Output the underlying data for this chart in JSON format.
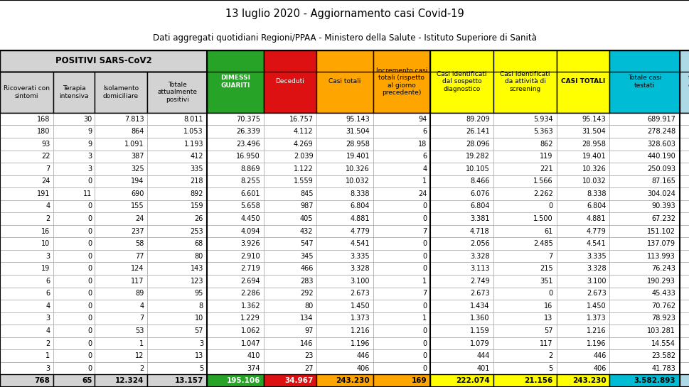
{
  "title1": "13 luglio 2020 - Aggiornamento casi Covid-19",
  "title2": "Dati aggregati quotidiani Regioni/PPAA - Ministero della Salute - Istituto Superiore di Sanità",
  "header_positivi": "POSITIVI SARS-CoV2",
  "sub_headers": [
    "Ricoverati con\nsintomi",
    "Terapia\nintensiva",
    "Isolamento\ndomiciliare",
    "Totale\nattualmente\npositivi"
  ],
  "header_dimessi": "DIMESSI\nGUARITI",
  "header_deceduti": "Deceduti",
  "header_casi_totali": "Casi totali",
  "header_incremento": "Incremento casi\ntotali (rispetto\nal giorno\nprecedente)",
  "header_sospetto": "Casi identificati\ndal sospetto\ndiagnostico",
  "header_screening": "Casi identificati\nda attività di\nscreening",
  "header_casi_totali2": "CASI TOTALI",
  "header_testati": "Totale casi\ntestati",
  "header_last": "t\ne",
  "col_header_colors": [
    "#d3d3d3",
    "#d3d3d3",
    "#d3d3d3",
    "#d3d3d3",
    "#27a327",
    "#dd1111",
    "#ffa500",
    "#ffa500",
    "#ffff00",
    "#ffff00",
    "#ffff00",
    "#00bcd4",
    "#add8e6"
  ],
  "col_header_text_colors": [
    "black",
    "black",
    "black",
    "black",
    "white",
    "white",
    "black",
    "black",
    "black",
    "black",
    "black",
    "black",
    "black"
  ],
  "total_bg_colors": [
    "#d3d3d3",
    "#d3d3d3",
    "#d3d3d3",
    "#d3d3d3",
    "#27a327",
    "#dd1111",
    "#ffa500",
    "#ffa500",
    "#ffff00",
    "#ffff00",
    "#ffff00",
    "#00bcd4",
    "#add8e6"
  ],
  "total_text_colors": [
    "black",
    "black",
    "black",
    "black",
    "white",
    "white",
    "black",
    "black",
    "black",
    "black",
    "black",
    "black",
    "black"
  ],
  "rows": [
    [
      "168",
      "30",
      "7.813",
      "8.011",
      "70.375",
      "16.757",
      "95.143",
      "94",
      "89.209",
      "5.934",
      "95.143",
      "689.917",
      ""
    ],
    [
      "180",
      "9",
      "864",
      "1.053",
      "26.339",
      "4.112",
      "31.504",
      "6",
      "26.141",
      "5.363",
      "31.504",
      "278.248",
      ""
    ],
    [
      "93",
      "9",
      "1.091",
      "1.193",
      "23.496",
      "4.269",
      "28.958",
      "18",
      "28.096",
      "862",
      "28.958",
      "328.603",
      ""
    ],
    [
      "22",
      "3",
      "387",
      "412",
      "16.950",
      "2.039",
      "19.401",
      "6",
      "19.282",
      "119",
      "19.401",
      "440.190",
      ""
    ],
    [
      "7",
      "3",
      "325",
      "335",
      "8.869",
      "1.122",
      "10.326",
      "4",
      "10.105",
      "221",
      "10.326",
      "250.093",
      ""
    ],
    [
      "24",
      "0",
      "194",
      "218",
      "8.255",
      "1.559",
      "10.032",
      "1",
      "8.466",
      "1.566",
      "10.032",
      "87.165",
      ""
    ],
    [
      "191",
      "11",
      "690",
      "892",
      "6.601",
      "845",
      "8.338",
      "24",
      "6.076",
      "2.262",
      "8.338",
      "304.024",
      ""
    ],
    [
      "4",
      "0",
      "155",
      "159",
      "5.658",
      "987",
      "6.804",
      "0",
      "6.804",
      "0",
      "6.804",
      "90.393",
      ""
    ],
    [
      "2",
      "0",
      "24",
      "26",
      "4.450",
      "405",
      "4.881",
      "0",
      "3.381",
      "1.500",
      "4.881",
      "67.232",
      ""
    ],
    [
      "16",
      "0",
      "237",
      "253",
      "4.094",
      "432",
      "4.779",
      "7",
      "4.718",
      "61",
      "4.779",
      "151.102",
      ""
    ],
    [
      "10",
      "0",
      "58",
      "68",
      "3.926",
      "547",
      "4.541",
      "0",
      "2.056",
      "2.485",
      "4.541",
      "137.079",
      ""
    ],
    [
      "3",
      "0",
      "77",
      "80",
      "2.910",
      "345",
      "3.335",
      "0",
      "3.328",
      "7",
      "3.335",
      "113.993",
      ""
    ],
    [
      "19",
      "0",
      "124",
      "143",
      "2.719",
      "466",
      "3.328",
      "0",
      "3.113",
      "215",
      "3.328",
      "76.243",
      ""
    ],
    [
      "6",
      "0",
      "117",
      "123",
      "2.694",
      "283",
      "3.100",
      "1",
      "2.749",
      "351",
      "3.100",
      "190.293",
      ""
    ],
    [
      "6",
      "0",
      "89",
      "95",
      "2.286",
      "292",
      "2.673",
      "7",
      "2.673",
      "0",
      "2.673",
      "45.433",
      ""
    ],
    [
      "4",
      "0",
      "4",
      "8",
      "1.362",
      "80",
      "1.450",
      "0",
      "1.434",
      "16",
      "1.450",
      "70.762",
      ""
    ],
    [
      "3",
      "0",
      "7",
      "10",
      "1.229",
      "134",
      "1.373",
      "1",
      "1.360",
      "13",
      "1.373",
      "78.923",
      ""
    ],
    [
      "4",
      "0",
      "53",
      "57",
      "1.062",
      "97",
      "1.216",
      "0",
      "1.159",
      "57",
      "1.216",
      "103.281",
      ""
    ],
    [
      "2",
      "0",
      "1",
      "3",
      "1.047",
      "146",
      "1.196",
      "0",
      "1.079",
      "117",
      "1.196",
      "14.554",
      ""
    ],
    [
      "1",
      "0",
      "12",
      "13",
      "410",
      "23",
      "446",
      "0",
      "444",
      "2",
      "446",
      "23.582",
      ""
    ],
    [
      "3",
      "0",
      "2",
      "5",
      "374",
      "27",
      "406",
      "0",
      "401",
      "5",
      "406",
      "41.783",
      ""
    ]
  ],
  "totals": [
    "768",
    "65",
    "12.324",
    "13.157",
    "195.106",
    "34.967",
    "243.230",
    "169",
    "222.074",
    "21.156",
    "243.230",
    "3.582.893",
    ""
  ]
}
